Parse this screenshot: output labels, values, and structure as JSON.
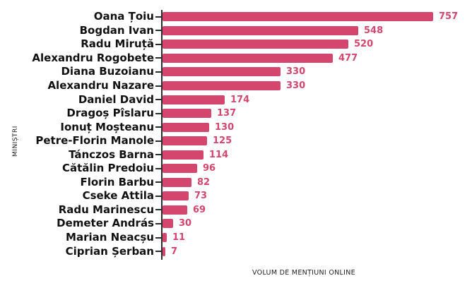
{
  "chart_data": {
    "type": "bar",
    "orientation": "horizontal",
    "title": "",
    "xlabel": "VOLUM DE MENȚIUNI ONLINE",
    "ylabel": "MINIȘTRI",
    "categories": [
      "Oana Țoiu",
      "Bogdan Ivan",
      "Radu Miruță",
      "Alexandru Rogobete",
      "Diana Buzoianu",
      "Alexandru Nazare",
      "Daniel David",
      "Dragoș Pîslaru",
      "Ionuț Moșteanu",
      "Petre-Florin Manole",
      "Tánczos Barna",
      "Cătălin Predoiu",
      "Florin Barbu",
      "Cseke Attila",
      "Radu Marinescu",
      "Demeter András",
      "Marian Neacșu",
      "Ciprian Șerban"
    ],
    "values": [
      757,
      548,
      520,
      477,
      330,
      330,
      174,
      137,
      130,
      125,
      114,
      96,
      82,
      73,
      69,
      30,
      11,
      7
    ],
    "xlim": [
      0,
      780
    ],
    "grid": false,
    "legend": false,
    "value_labels_shown": true,
    "bar_color": "#d5466e",
    "value_label_color": "#d5466e",
    "axis_color": "#2d2d2d"
  }
}
